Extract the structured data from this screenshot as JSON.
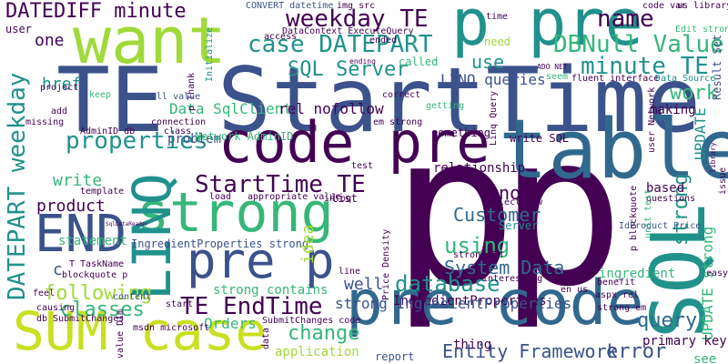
{
  "palette": {
    "background": "#ffffff",
    "dark_purple": "#440154",
    "indigo": "#3b528b",
    "blue": "#31688e",
    "teal": "#21918c",
    "green": "#35b779",
    "light_green": "#5ec962",
    "yellow_green": "#a0da39",
    "yellow": "#c8e020"
  },
  "words": {
    "TE_StartTime": "TE StartTime",
    "p_big": "p",
    "p_big_2": "p",
    "want": "want",
    "table": "table",
    "code_pre": "code pre",
    "pre_code": "pre code",
    "p_pre": "p pre",
    "strong_1": "strong",
    "SQL": "SQL",
    "LINQ": "LINQ",
    "SUM_case": "SUM case",
    "END": "END",
    "pre_p": "pre p",
    "DATEPART_weekday": "DATEPART weekday",
    "DATEDIFF_minute": "DATEDIFF minute",
    "weekday_TE": "weekday TE",
    "case_DATEPART": "case DATEPART",
    "DBNull_Value": "DBNull Value",
    "name": "name",
    "SQL_Server": "SQL Server",
    "minute_TE": "minute TE",
    "StartTime_TE": "StartTime TE",
    "properties": "properties",
    "strong_2": "strong",
    "TE_EndTime": "TE EndTime",
    "database": "database",
    "using": "using",
    "following": "following",
    "classes": "classes",
    "Customer": "Customer",
    "System_Data": "System Data",
    "Entity_Framework": "Entity Framework",
    "error": "error",
    "query": "query",
    "change": "change",
    "work": "work",
    "UPDATE": "UPDATE",
    "UPDATE_strong": "UPDATE strong",
    "LINQ_queries": "LINQ queries",
    "Result_Set": "Result Set",
    "Data_SqlClient": "Data SqlClient",
    "IngredientProperties_strong": "IngredientProperties strong",
    "write": "write",
    "product": "product",
    "know": "know",
    "use": "use",
    "one": "one",
    "href": "href",
    "problem": "problem",
    "statement": "statement",
    "Orders": "Orders",
    "application": "application",
    "well": "well",
    "idea": "idea",
    "primary_key": "primary key",
    "see": "see",
    "ingredient": "ingredient",
    "based": "based",
    "making": "making",
    "Network_AdminID": "Network AdminID",
    "strong_contains": "strong contains",
    "rel_nofollow": "rel nofollow",
    "relationship": "relationship",
    "something": "something",
    "write_SQL": "write SQL",
    "Linq_Query": "Linq Query",
    "select_new": "select new",
    "IngredientProperties": "IngredientProperties",
    "strong_IngredientProperties": "strong IngredientProperties",
    "thing": "thing",
    "report": "report",
    "SubmitChanges_code": "SubmitChanges code",
    "db_SubmitChanges": "db SubmitChanges",
    "msdn_microsoft": "msdn microsoft",
    "DataContext_ExecuteQuery": "DataContext ExecuteQuery",
    "CONVERT_datetime": "CONVERT datetime",
    "img_src": "img src",
    "access": "access",
    "called": "called",
    "ended": "ended",
    "need": "need",
    "Data_Source": "Data Source",
    "code_var": "code var",
    "us_library": "us library",
    "Edit_strong": "Edit strong",
    "time": "time",
    "TaskName": "T TaskName",
    "content": "content",
    "feel": "feel",
    "causing": "causing",
    "template": "template",
    "missing": "missing",
    "project": "project",
    "keep": "keep",
    "add": "add",
    "user": "user",
    "p_Thank": "p Thank",
    "Initialize": "Initialize",
    "null_value": "null value",
    "connection": "connection",
    "correct": "correct",
    "getting": "getting",
    "em_strong": "em strong",
    "fluent_interface": "fluent interface",
    "seem": "seem",
    "ADO_NET": "ADO NET",
    "aspx_rel": "aspx rel",
    "en_us": "en us",
    "easy": "easy",
    "benefit": "benefit",
    "interesting": "interesting",
    "strong_EM": "strong EM",
    "IdProduct_Price": "IdProduct Price",
    "questions": "questions",
    "list": "list",
    "load": "load",
    "appropriate_value": "appropriate value",
    "test": "test",
    "start": "start",
    "Price_Density": "Price Density",
    "Server": "Server",
    "line": "line",
    "data": "data",
    "class": "class",
    "AdminID_db": "AdminID db",
    "value_Dim": "value Dim",
    "c": "c",
    "blockquote_p": "blockquote p",
    "infoq": "infoq",
    "SqlDataReader": "SqlDataReader",
    "ending": "ending",
    "unit_test": "unit test",
    "user_Network": "user Network",
    "issue": "issue",
    "library": "library",
    "p_blockquote": "p blockquote",
    "strong_em": "strong em"
  }
}
